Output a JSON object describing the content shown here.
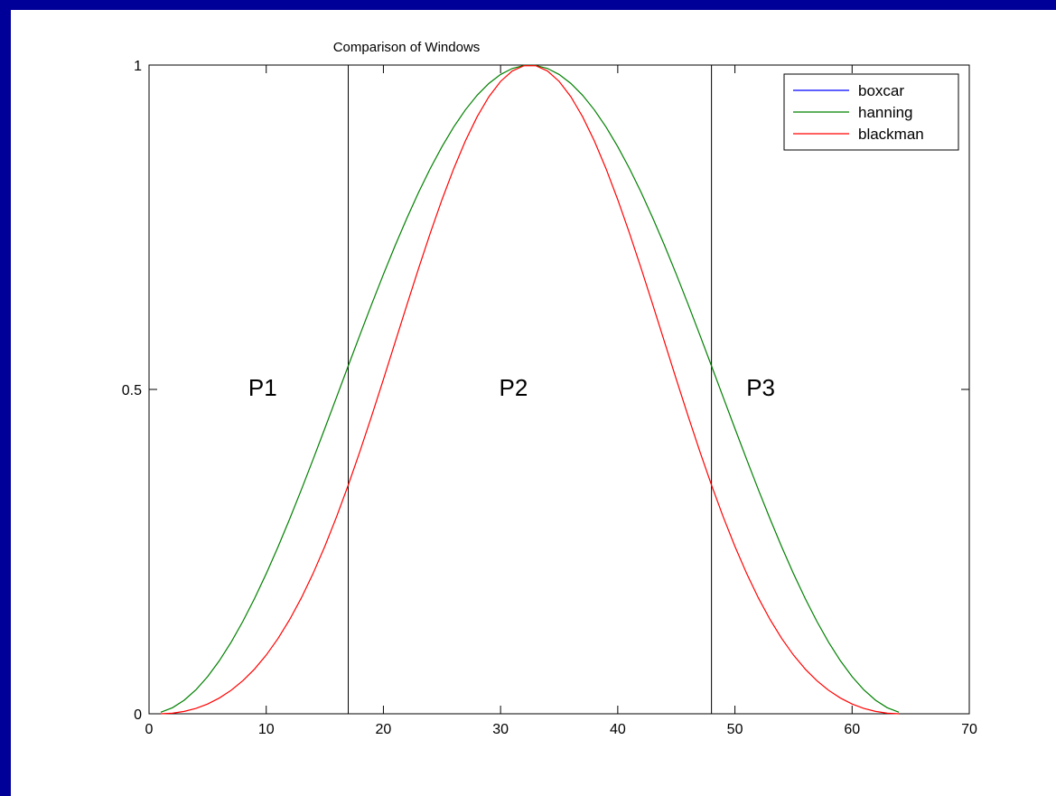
{
  "chart_data": {
    "type": "line",
    "title": "Comparison of Windows",
    "xlabel": "",
    "ylabel": "",
    "xlim": [
      0,
      70
    ],
    "ylim": [
      0,
      1
    ],
    "xticks": [
      0,
      10,
      20,
      30,
      40,
      50,
      60,
      70
    ],
    "yticks": [
      0,
      0.5,
      1
    ],
    "grid": false,
    "legend_position": "top-right",
    "window_length": 64,
    "series": [
      {
        "name": "boxcar",
        "color": "#0000ff",
        "window": "boxcar",
        "visible_in_plot": false
      },
      {
        "name": "hanning",
        "color": "#008000",
        "window": "hanning"
      },
      {
        "name": "blackman",
        "color": "#ff0000",
        "window": "blackman"
      }
    ],
    "vertical_lines": [
      17,
      48
    ],
    "annotations": [
      {
        "text": "P1",
        "x": 9.7,
        "y": 0.49
      },
      {
        "text": "P2",
        "x": 31.1,
        "y": 0.49
      },
      {
        "text": "P3",
        "x": 52.2,
        "y": 0.49
      }
    ]
  },
  "colors": {
    "page_background": "#000099",
    "plot_background": "#ffffff",
    "axis": "#000000"
  }
}
